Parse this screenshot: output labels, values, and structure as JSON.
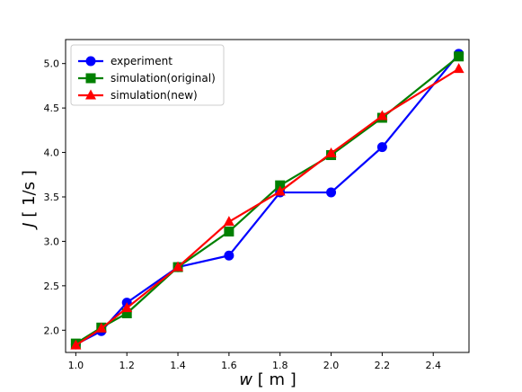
{
  "chart_data": {
    "type": "line",
    "xlabel_var": "w",
    "xlabel_unit": " [ m ]",
    "ylabel_var": "J",
    "ylabel_unit": " [ 1/s ]",
    "xlim": [
      0.96,
      2.54
    ],
    "ylim": [
      1.75,
      5.27
    ],
    "xticks": [
      1.0,
      1.2,
      1.4,
      1.6,
      1.8,
      2.0,
      2.2,
      2.4
    ],
    "xtick_labels": [
      "1.0",
      "1.2",
      "1.4",
      "1.6",
      "1.8",
      "2.0",
      "2.2",
      "2.4"
    ],
    "yticks": [
      2.0,
      2.5,
      3.0,
      3.5,
      4.0,
      4.5,
      5.0
    ],
    "ytick_labels": [
      "2.0",
      "2.5",
      "3.0",
      "3.5",
      "4.0",
      "4.5",
      "5.0"
    ],
    "grid": false,
    "legend_position": "top-left",
    "x": [
      1.0,
      1.1,
      1.2,
      1.4,
      1.6,
      1.8,
      2.0,
      2.2,
      2.5
    ],
    "series": [
      {
        "name": "experiment",
        "color": "#0000ff",
        "marker": "circle",
        "values": [
          1.84,
          1.99,
          2.31,
          2.71,
          2.84,
          3.55,
          3.55,
          4.06,
          5.11
        ]
      },
      {
        "name": "simulation(original)",
        "color": "#008000",
        "marker": "square",
        "values": [
          1.85,
          2.03,
          2.19,
          2.71,
          3.11,
          3.63,
          3.97,
          4.39,
          5.08
        ]
      },
      {
        "name": "simulation(new)",
        "color": "#ff0000",
        "marker": "triangle",
        "values": [
          1.83,
          2.02,
          2.25,
          2.71,
          3.22,
          3.56,
          3.99,
          4.41,
          4.94
        ]
      }
    ]
  }
}
